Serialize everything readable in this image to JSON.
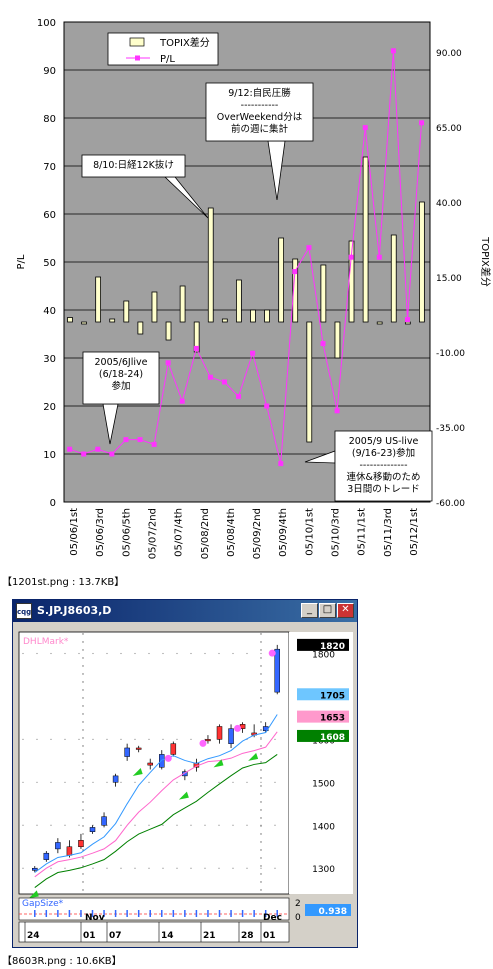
{
  "chart_data": [
    {
      "type": "bar+line",
      "left_axis": {
        "label": "P/L",
        "ticks": [
          "0",
          "10",
          "20",
          "30",
          "40",
          "50",
          "60",
          "70",
          "80",
          "90",
          "100"
        ],
        "range": [
          0,
          100
        ]
      },
      "right_axis": {
        "label": "TOPIX差分",
        "ticks": [
          "-60.00",
          "-35.00",
          "-10.00",
          "15.00",
          "40.00",
          "65.00",
          "90.00"
        ],
        "range": [
          -60,
          100
        ]
      },
      "x_labels": [
        "05/06/1st",
        "05/06/3rd",
        "05/06/5th",
        "05/07/2nd",
        "05/07/4th",
        "05/08/2nd",
        "05/08/4th",
        "05/09/2nd",
        "05/09/4th",
        "05/10/1st",
        "05/10/3rd",
        "05/11/1st",
        "05/11/3rd",
        "05/12/1st"
      ],
      "legend": [
        "TOPIX差分",
        "P/L"
      ],
      "series": [
        {
          "name": "TOPIX差分",
          "kind": "bar",
          "values": [
            1.5,
            0,
            15,
            1,
            7,
            -4,
            10,
            -6,
            12,
            -10,
            38,
            1,
            14,
            4,
            4,
            28,
            21,
            -40,
            19,
            -12,
            27,
            55,
            0,
            29,
            0,
            40
          ]
        },
        {
          "name": "P/L",
          "kind": "line",
          "values": [
            11,
            10,
            11,
            10,
            13,
            13,
            12,
            29,
            21,
            32,
            26,
            25,
            22,
            31,
            20,
            8,
            48,
            53,
            33,
            19,
            51,
            78,
            51,
            94,
            38,
            79
          ]
        }
      ],
      "annotations": [
        "8/10:日経12K抜け",
        "9/12:自民圧勝",
        "-----------",
        "OverWeekend分は",
        "前の週に集計",
        "2005/6Jlive",
        "(6/18-24)",
        "参加",
        "2005/9 US-live",
        "(9/16-23)参加",
        "--------------",
        "連休&移動のため",
        "3日間のトレード"
      ]
    },
    {
      "type": "candlestick",
      "y_ticks": [
        "1300",
        "1400",
        "1500",
        "1600",
        "1800"
      ],
      "x_ticks": [
        "24",
        "01",
        "07",
        "14",
        "21",
        "28",
        "01"
      ],
      "month_labels": [
        "Nov",
        "Dec"
      ],
      "price_labels": [
        {
          "value": "1820",
          "color": "#000000"
        },
        {
          "value": "1705",
          "color": "#6ec6ff"
        },
        {
          "value": "1653",
          "color": "#ff99cc"
        },
        {
          "value": "1608",
          "color": "#008000"
        }
      ],
      "candles": [
        {
          "o": 1300,
          "h": 1305,
          "l": 1290,
          "c": 1295,
          "up": true
        },
        {
          "o": 1320,
          "h": 1340,
          "l": 1315,
          "c": 1335,
          "up": true
        },
        {
          "o": 1345,
          "h": 1370,
          "l": 1335,
          "c": 1360,
          "up": true
        },
        {
          "o": 1330,
          "h": 1365,
          "l": 1325,
          "c": 1350,
          "up": false
        },
        {
          "o": 1350,
          "h": 1380,
          "l": 1345,
          "c": 1365,
          "up": false
        },
        {
          "o": 1385,
          "h": 1400,
          "l": 1380,
          "c": 1395,
          "up": true
        },
        {
          "o": 1400,
          "h": 1430,
          "l": 1395,
          "c": 1420,
          "up": true
        },
        {
          "o": 1500,
          "h": 1520,
          "l": 1490,
          "c": 1515,
          "up": true
        },
        {
          "o": 1560,
          "h": 1590,
          "l": 1550,
          "c": 1580,
          "up": true
        },
        {
          "o": 1578,
          "h": 1585,
          "l": 1570,
          "c": 1580,
          "up": false
        },
        {
          "o": 1540,
          "h": 1555,
          "l": 1530,
          "c": 1545,
          "up": false
        },
        {
          "o": 1535,
          "h": 1575,
          "l": 1530,
          "c": 1565,
          "up": true
        },
        {
          "o": 1590,
          "h": 1595,
          "l": 1560,
          "c": 1565,
          "up": false
        },
        {
          "o": 1515,
          "h": 1530,
          "l": 1505,
          "c": 1525,
          "up": true
        },
        {
          "o": 1535,
          "h": 1555,
          "l": 1525,
          "c": 1545,
          "up": false
        },
        {
          "o": 1600,
          "h": 1610,
          "l": 1590,
          "c": 1600,
          "up": false
        },
        {
          "o": 1630,
          "h": 1635,
          "l": 1590,
          "c": 1600,
          "up": false
        },
        {
          "o": 1590,
          "h": 1635,
          "l": 1580,
          "c": 1625,
          "up": true
        },
        {
          "o": 1625,
          "h": 1640,
          "l": 1615,
          "c": 1635,
          "up": false
        },
        {
          "o": 1610,
          "h": 1635,
          "l": 1605,
          "c": 1615,
          "up": false
        },
        {
          "o": 1620,
          "h": 1640,
          "l": 1615,
          "c": 1630,
          "up": true
        },
        {
          "o": 1710,
          "h": 1820,
          "l": 1705,
          "c": 1810,
          "up": true
        }
      ],
      "indicators": [
        "DHLMark*",
        "GapSize*"
      ],
      "gap_value": "0.938",
      "gap_scale": [
        "2",
        "0"
      ]
    }
  ],
  "captions": {
    "chart1": "【1201st.png : 13.7KB】",
    "chart2": "【8603R.png : 10.6KB】"
  },
  "window": {
    "title": "S.JP.J8603,D",
    "icon": "app-icon",
    "minimize": "_",
    "maximize": "□",
    "close": "✕"
  },
  "colors": {
    "plot_bg": "#a0a0a0",
    "bar_fill": "#ffffcc",
    "pl_line": "#ff33ff",
    "chart2_bg": "#ffffff",
    "up_candle": "#3366ff",
    "down_candle": "#ff3333"
  }
}
